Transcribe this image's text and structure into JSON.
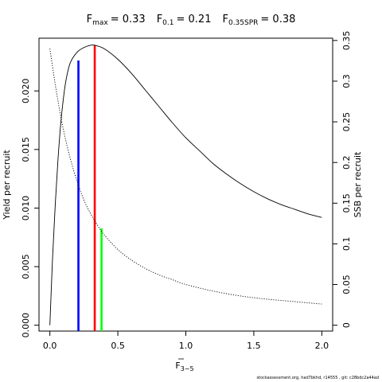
{
  "chart_data": {
    "type": "line",
    "title": "F_max = 0.33    F_0.1 = 0.21    F_0.35SPR = 0.38",
    "title_parts": [
      {
        "base": "F",
        "sub": "max",
        "value": "= 0.33"
      },
      {
        "base": "F",
        "sub": "0.1",
        "value": "= 0.21"
      },
      {
        "base": "F",
        "sub": "0.35SPR",
        "value": "= 0.38"
      }
    ],
    "xlabel": {
      "base": "F",
      "sub": "3−5"
    },
    "ylabel_left": "Yield per recruit",
    "ylabel_right": "SSB per recruit",
    "xlim": [
      -0.08,
      2.08
    ],
    "ylim_left": [
      -0.0005,
      0.0245
    ],
    "ylim_right": [
      -0.0072,
      0.3528
    ],
    "x_ticks": [
      0,
      0.5,
      1,
      1.5,
      2
    ],
    "x_tick_labels": [
      "0.0",
      "0.5",
      "1.0",
      "1.5",
      "2.0"
    ],
    "y_left_ticks": [
      0,
      0.005,
      0.01,
      0.015,
      0.02
    ],
    "y_left_tick_labels": [
      "0.000",
      "0.005",
      "0.010",
      "0.015",
      "0.020"
    ],
    "y_right_ticks": [
      0,
      0.05,
      0.1,
      0.15,
      0.2,
      0.25,
      0.3,
      0.35
    ],
    "y_right_tick_labels": [
      "0",
      "0.05",
      "0.1",
      "0.15",
      "0.2",
      "0.25",
      "0.3",
      "0.35"
    ],
    "series": [
      {
        "axis": "left",
        "style": "solid",
        "color": "#000000",
        "points": [
          [
            0,
            0
          ],
          [
            0.02,
            0.0058
          ],
          [
            0.04,
            0.0104
          ],
          [
            0.06,
            0.0142
          ],
          [
            0.08,
            0.0172
          ],
          [
            0.1,
            0.0194
          ],
          [
            0.12,
            0.021
          ],
          [
            0.15,
            0.0224
          ],
          [
            0.2,
            0.0233
          ],
          [
            0.25,
            0.0237
          ],
          [
            0.3,
            0.0239
          ],
          [
            0.33,
            0.0239
          ],
          [
            0.4,
            0.0236
          ],
          [
            0.5,
            0.0227
          ],
          [
            0.6,
            0.0215
          ],
          [
            0.7,
            0.0201
          ],
          [
            0.8,
            0.0187
          ],
          [
            0.9,
            0.0173
          ],
          [
            1.0,
            0.016
          ],
          [
            1.1,
            0.0149
          ],
          [
            1.2,
            0.0138
          ],
          [
            1.3,
            0.0129
          ],
          [
            1.4,
            0.0121
          ],
          [
            1.5,
            0.0114
          ],
          [
            1.6,
            0.0108
          ],
          [
            1.7,
            0.0103
          ],
          [
            1.8,
            0.0099
          ],
          [
            1.9,
            0.0095
          ],
          [
            2.0,
            0.0092
          ]
        ]
      },
      {
        "axis": "right",
        "style": "dotted",
        "color": "#000000",
        "points": [
          [
            0,
            0.34
          ],
          [
            0.05,
            0.285
          ],
          [
            0.1,
            0.24
          ],
          [
            0.15,
            0.205
          ],
          [
            0.2,
            0.177
          ],
          [
            0.25,
            0.154
          ],
          [
            0.3,
            0.137
          ],
          [
            0.35,
            0.123
          ],
          [
            0.4,
            0.111
          ],
          [
            0.5,
            0.093
          ],
          [
            0.6,
            0.08
          ],
          [
            0.7,
            0.07
          ],
          [
            0.8,
            0.062
          ],
          [
            0.9,
            0.056
          ],
          [
            1.0,
            0.05
          ],
          [
            1.2,
            0.042
          ],
          [
            1.4,
            0.036
          ],
          [
            1.6,
            0.032
          ],
          [
            1.8,
            0.029
          ],
          [
            2.0,
            0.026
          ]
        ]
      }
    ],
    "reference_lines": [
      {
        "name": "F_0.1",
        "x": 0.21,
        "y_top": 0.0226,
        "color": "#0000ff"
      },
      {
        "name": "F_max",
        "x": 0.33,
        "y_top": 0.0239,
        "color": "#ff0000"
      },
      {
        "name": "F_0.35SPR",
        "x": 0.38,
        "y_top": 0.119,
        "y_axis": "right",
        "color": "#00ff00"
      }
    ]
  },
  "footer": "stockassessment.org, had7bkhd, r14555 ,  git: c28bdc2a44ad"
}
